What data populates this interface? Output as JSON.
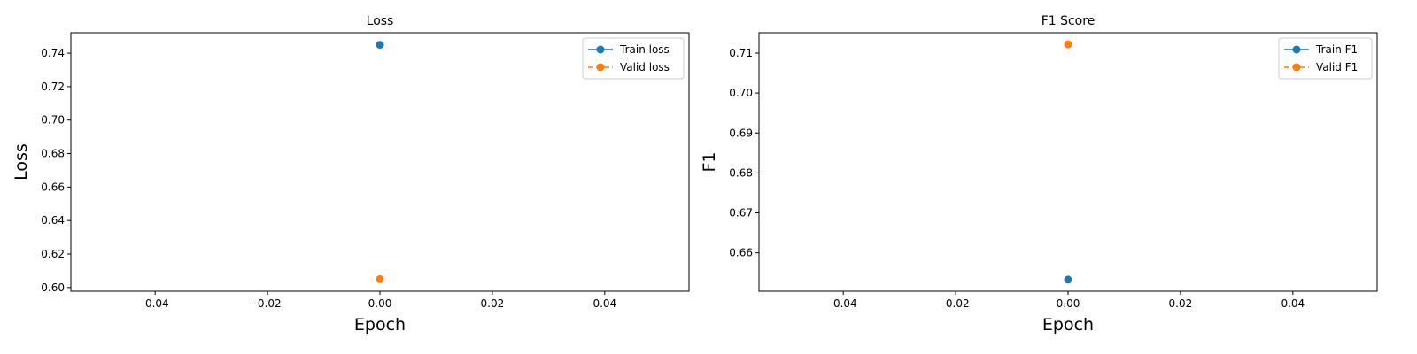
{
  "chart_data": [
    {
      "type": "line",
      "title": "Loss",
      "xlabel": "Epoch",
      "ylabel": "Loss",
      "xlim": [
        -0.055,
        0.055
      ],
      "ylim": [
        0.5978,
        0.7522
      ],
      "xticks": [
        "-0.04",
        "-0.02",
        "0.00",
        "0.02",
        "0.04"
      ],
      "yticks": [
        "0.60",
        "0.62",
        "0.64",
        "0.66",
        "0.68",
        "0.70",
        "0.72",
        "0.74"
      ],
      "grid": false,
      "legend_position": "top-right",
      "series": [
        {
          "name": "Train loss",
          "x": [
            0
          ],
          "y": [
            0.745
          ],
          "color": "#1f77b4",
          "dash": "solid"
        },
        {
          "name": "Valid loss",
          "x": [
            0
          ],
          "y": [
            0.605
          ],
          "color": "#ff7f0e",
          "dash": "dashed"
        }
      ]
    },
    {
      "type": "line",
      "title": "F1 Score",
      "xlabel": "Epoch",
      "ylabel": "F1",
      "xlim": [
        -0.055,
        0.055
      ],
      "ylim": [
        0.6504,
        0.7151
      ],
      "xticks": [
        "-0.04",
        "-0.02",
        "0.00",
        "0.02",
        "0.04"
      ],
      "yticks": [
        "0.66",
        "0.67",
        "0.68",
        "0.69",
        "0.70",
        "0.71"
      ],
      "grid": false,
      "legend_position": "top-right",
      "series": [
        {
          "name": "Train F1",
          "x": [
            0
          ],
          "y": [
            0.6533
          ],
          "color": "#1f77b4",
          "dash": "solid"
        },
        {
          "name": "Valid F1",
          "x": [
            0
          ],
          "y": [
            0.7122
          ],
          "color": "#ff7f0e",
          "dash": "dashed"
        }
      ]
    }
  ]
}
